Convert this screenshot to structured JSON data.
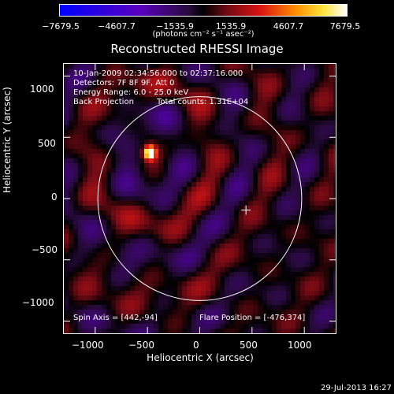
{
  "colorbar": {
    "tick_labels": [
      "−7679.5",
      "−4607.7",
      "−1535.9",
      "1535.9",
      "4607.7",
      "7679.5"
    ],
    "units": "(photons cm⁻² s⁻¹ asec⁻²)",
    "range": [
      -7679.5,
      7679.5
    ]
  },
  "chart_data": {
    "type": "heatmap",
    "title": "Reconstructed RHESSI Image",
    "xlabel": "Heliocentric X (arcsec)",
    "ylabel": "Heliocentric Y (arcsec)",
    "xlim": [
      -1300,
      1300
    ],
    "ylim": [
      -1100,
      1100
    ],
    "x_ticks": [
      -1000,
      -500,
      0,
      500,
      1000
    ],
    "y_ticks": [
      -1000,
      -500,
      0,
      500,
      1000
    ],
    "x_tick_labels": [
      "−1000",
      "−500",
      "0",
      "500",
      "1000"
    ],
    "y_tick_labels": [
      "−1000",
      "−500",
      "0",
      "500",
      "1000"
    ],
    "solar_limb_radius": 975,
    "spin_axis": [
      442,
      -94
    ],
    "source": {
      "x": -476,
      "y": 374
    }
  },
  "info": {
    "time": "10-Jan-2009 02:34:56.000 to 02:37:16.000",
    "detectors": "Detectors: 7F 8F 9F, Att 0",
    "energy": "Energy Range: 6.0 - 25.0 keV",
    "method": "Back Projection",
    "counts": "Total counts: 1.31E+04",
    "spin_axis": "Spin Axis = [442,-94]",
    "flare_position": "Flare Position = [-476,374]"
  },
  "footer": "29-Jul-2013 16:27"
}
